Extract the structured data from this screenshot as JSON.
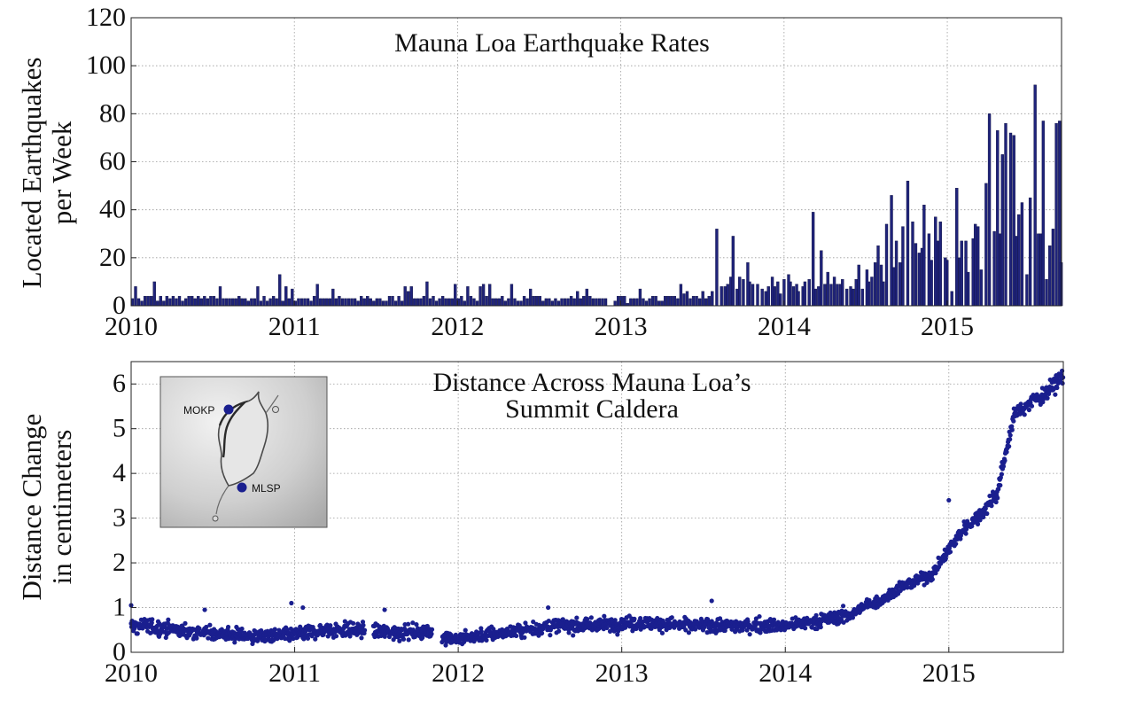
{
  "chart_data": [
    {
      "type": "bar",
      "title": "Mauna Loa Earthquake Rates",
      "ylabel": "Located Earthquakes",
      "ylabel2": "per Week",
      "xlabel": "",
      "xlim": [
        2010.0,
        2015.7
      ],
      "ylim": [
        0,
        120
      ],
      "grid": true,
      "x_ticks": [
        "2010",
        "2011",
        "2012",
        "2013",
        "2014",
        "2015"
      ],
      "y_ticks": [
        "0",
        "20",
        "40",
        "60",
        "80",
        "100",
        "120"
      ],
      "bar_color": "#1f237a",
      "bar_width_years": 0.0192,
      "x": [
        2013.58,
        2013.63,
        2013.68,
        2013.72,
        2013.77,
        2013.83,
        2013.88,
        2013.92,
        2013.97,
        2014.02,
        2014.08,
        2014.12,
        2014.17,
        2014.22,
        2014.26,
        2014.3,
        2014.35,
        2014.4,
        2014.45,
        2014.5,
        2014.55,
        2014.6,
        2014.62,
        2014.65,
        2014.68,
        2014.72,
        2014.75,
        2014.78,
        2014.82,
        2014.85,
        2014.88,
        2014.92,
        2014.95,
        2014.98,
        2015.02,
        2015.05,
        2015.08,
        2015.12,
        2015.15,
        2015.18,
        2015.2,
        2015.23,
        2015.25,
        2015.28,
        2015.3,
        2015.33,
        2015.35,
        2015.38,
        2015.4,
        2015.43,
        2015.45,
        2015.48,
        2015.5,
        2015.53,
        2015.55,
        2015.58,
        2015.6,
        2015.62,
        2015.64,
        2015.66,
        2015.68,
        2015.69
      ],
      "values": [
        32,
        8,
        29,
        12,
        18,
        9,
        6,
        12,
        5,
        13,
        6,
        10,
        39,
        23,
        14,
        12,
        11,
        8,
        17,
        15,
        18,
        10,
        34,
        46,
        27,
        33,
        52,
        35,
        22,
        42,
        30,
        37,
        35,
        20,
        6,
        49,
        27,
        14,
        28,
        33,
        15,
        51,
        80,
        31,
        73,
        63,
        76,
        72,
        71,
        38,
        43,
        13,
        45,
        92,
        30,
        77,
        11,
        25,
        32,
        76,
        77,
        18
      ]
    },
    {
      "type": "scatter",
      "title": "Distance Across Mauna Loa’s",
      "title2": "Summit Caldera",
      "ylabel": "Distance Change",
      "ylabel2": "in centimeters",
      "xlabel": "",
      "xlim": [
        2010.0,
        2015.7
      ],
      "ylim": [
        0,
        6.5
      ],
      "grid": true,
      "x_ticks": [
        "2010",
        "2011",
        "2012",
        "2013",
        "2014",
        "2015"
      ],
      "y_ticks": [
        "0",
        "1",
        "2",
        "3",
        "4",
        "5",
        "6"
      ],
      "point_color": "#1a1f8f",
      "trend_x": [
        2010.0,
        2010.2,
        2010.4,
        2010.6,
        2010.8,
        2011.0,
        2011.2,
        2011.4,
        2011.6,
        2011.8,
        2012.0,
        2012.2,
        2012.4,
        2012.6,
        2012.8,
        2013.0,
        2013.2,
        2013.4,
        2013.6,
        2013.8,
        2014.0,
        2014.2,
        2014.4,
        2014.5,
        2014.6,
        2014.7,
        2014.8,
        2014.9,
        2015.0,
        2015.1,
        2015.2,
        2015.3,
        2015.35,
        2015.4,
        2015.5,
        2015.6,
        2015.7
      ],
      "trend_y": [
        0.6,
        0.55,
        0.45,
        0.4,
        0.35,
        0.4,
        0.5,
        0.5,
        0.45,
        0.45,
        0.3,
        0.4,
        0.5,
        0.6,
        0.6,
        0.65,
        0.65,
        0.6,
        0.6,
        0.6,
        0.6,
        0.7,
        0.85,
        1.05,
        1.2,
        1.45,
        1.6,
        1.75,
        2.3,
        2.8,
        3.1,
        3.6,
        4.5,
        5.3,
        5.6,
        5.8,
        6.2
      ],
      "outliers_x": [
        2010.0,
        2010.45,
        2010.98,
        2011.05,
        2011.55,
        2012.55,
        2013.55,
        2015.0
      ],
      "outliers_y": [
        1.05,
        0.95,
        1.1,
        1.0,
        0.95,
        1.0,
        1.15,
        3.4
      ],
      "gaps": [
        [
          2011.43,
          2011.48
        ],
        [
          2011.84,
          2011.9
        ]
      ]
    }
  ],
  "inset": {
    "labels": [
      "MOKP",
      "MLSP"
    ],
    "marker_color": "#1a1f8f"
  }
}
